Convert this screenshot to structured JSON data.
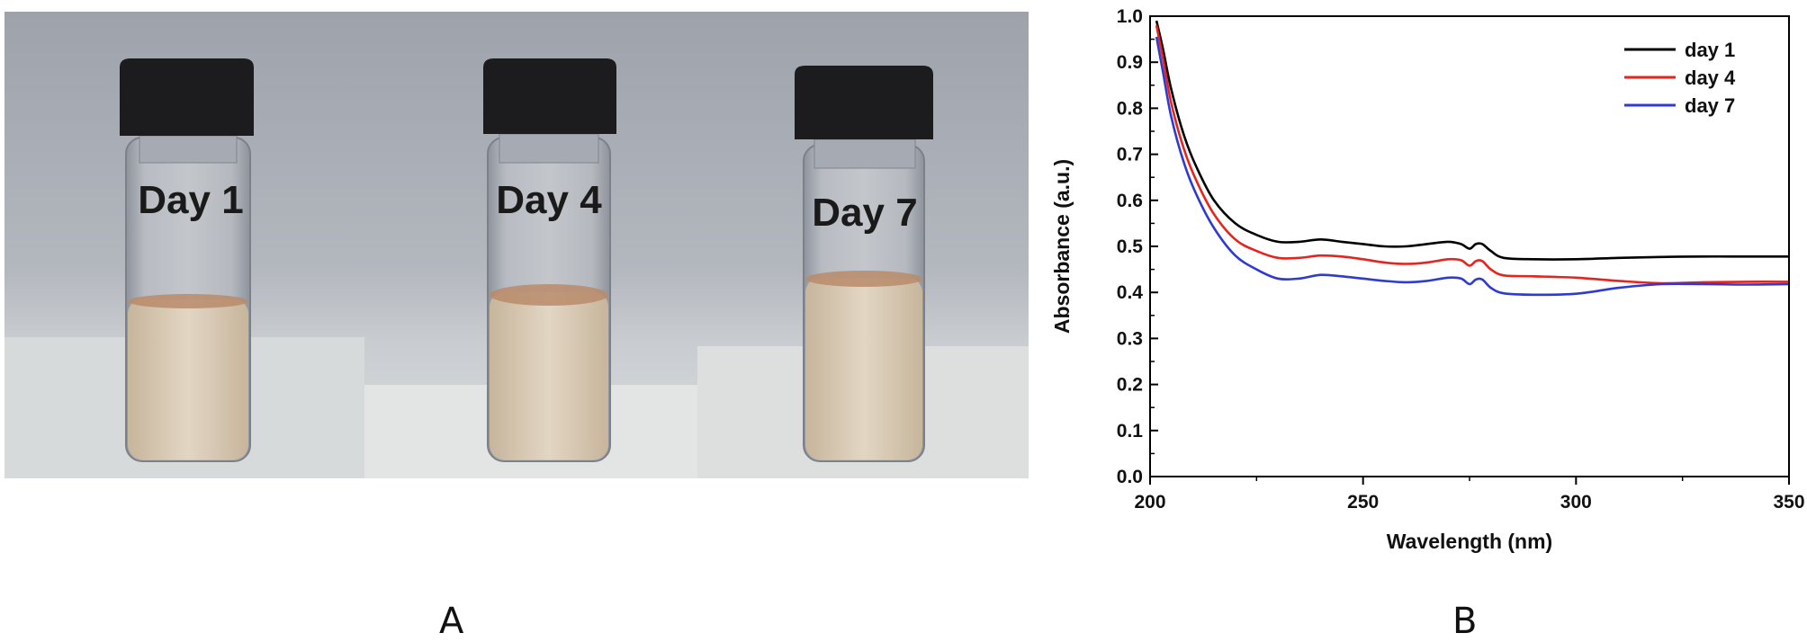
{
  "panels": {
    "a_label": "A",
    "b_label": "B"
  },
  "photo": {
    "vials": [
      {
        "label": "Day 1"
      },
      {
        "label": "Day 4"
      },
      {
        "label": "Day 7"
      }
    ],
    "colors": {
      "cap": "#1c1c1e",
      "liquid": "#d9cbb5",
      "meniscus": "#b98b6a",
      "wall": "#a9adb5"
    }
  },
  "chart_data": {
    "type": "line",
    "xlabel": "Wavelength (nm)",
    "ylabel": "Absorbance (a.u.)",
    "xlim": [
      200,
      350
    ],
    "ylim": [
      0.0,
      1.0
    ],
    "xticks": [
      200,
      250,
      300,
      350
    ],
    "yticks": [
      0.0,
      0.1,
      0.2,
      0.3,
      0.4,
      0.5,
      0.6,
      0.7,
      0.8,
      0.9,
      1.0
    ],
    "grid": false,
    "legend_position": "top-right",
    "series": [
      {
        "name": "day 1",
        "color": "#000000",
        "x": [
          201.5,
          203,
          205,
          208,
          211,
          215,
          220,
          225,
          230,
          235,
          240,
          245,
          250,
          255,
          260,
          265,
          270,
          273,
          275,
          276.5,
          278,
          280,
          283,
          290,
          300,
          310,
          320,
          330,
          340,
          350
        ],
        "y": [
          0.99,
          0.93,
          0.84,
          0.74,
          0.67,
          0.6,
          0.55,
          0.525,
          0.51,
          0.51,
          0.515,
          0.51,
          0.505,
          0.5,
          0.5,
          0.505,
          0.51,
          0.505,
          0.495,
          0.505,
          0.505,
          0.49,
          0.475,
          0.472,
          0.472,
          0.475,
          0.477,
          0.478,
          0.478,
          0.478
        ]
      },
      {
        "name": "day 4",
        "color": "#e8231c",
        "x": [
          201.5,
          203,
          205,
          208,
          211,
          215,
          220,
          225,
          230,
          235,
          240,
          245,
          250,
          255,
          260,
          265,
          270,
          273,
          275,
          276.5,
          278,
          280,
          283,
          290,
          300,
          310,
          320,
          330,
          340,
          350
        ],
        "y": [
          0.98,
          0.91,
          0.81,
          0.71,
          0.64,
          0.57,
          0.515,
          0.49,
          0.475,
          0.475,
          0.48,
          0.478,
          0.472,
          0.465,
          0.462,
          0.465,
          0.472,
          0.47,
          0.458,
          0.468,
          0.468,
          0.45,
          0.437,
          0.435,
          0.432,
          0.425,
          0.42,
          0.422,
          0.423,
          0.423
        ]
      },
      {
        "name": "day 7",
        "color": "#2d3bd4",
        "x": [
          201.5,
          203,
          205,
          208,
          211,
          215,
          220,
          225,
          230,
          235,
          240,
          245,
          250,
          255,
          260,
          265,
          270,
          273,
          275,
          276.5,
          278,
          280,
          283,
          290,
          300,
          310,
          320,
          330,
          340,
          350
        ],
        "y": [
          0.955,
          0.88,
          0.78,
          0.68,
          0.61,
          0.54,
          0.48,
          0.45,
          0.43,
          0.43,
          0.438,
          0.435,
          0.43,
          0.425,
          0.422,
          0.425,
          0.432,
          0.43,
          0.418,
          0.428,
          0.428,
          0.41,
          0.398,
          0.395,
          0.397,
          0.41,
          0.418,
          0.418,
          0.417,
          0.418
        ]
      }
    ]
  }
}
